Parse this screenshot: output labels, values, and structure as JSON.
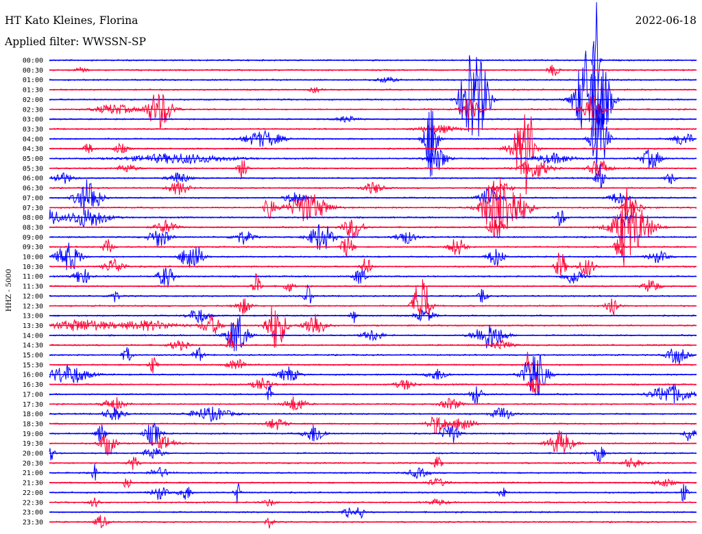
{
  "header": {
    "station": "HT Kato Kleines, Florina",
    "filter": "Applied filter: WWSSN-SP",
    "date": "2022-06-18"
  },
  "channel_label": "HHZ - 5000",
  "colors": {
    "blue": "#0000ff",
    "red": "#ff0033"
  },
  "chart_data": {
    "type": "line",
    "title": "HT Kato Kleines, Florina",
    "subtitle": "Applied filter: WWSSN-SP",
    "date": "2022-06-18",
    "ylabel": "HHZ - 5000",
    "series_colors_alternate": [
      "#0000ff",
      "#ff0033"
    ],
    "rows": [
      {
        "label": "00:00",
        "bursts": [
          [
            0.845,
            6.0,
            0.003
          ]
        ]
      },
      {
        "label": "00:30",
        "bursts": [
          [
            0.05,
            0.4,
            0.005
          ],
          [
            0.78,
            0.6,
            0.006
          ]
        ]
      },
      {
        "label": "01:00",
        "bursts": [
          [
            0.52,
            0.3,
            0.01
          ]
        ]
      },
      {
        "label": "01:30",
        "bursts": [
          [
            0.41,
            0.3,
            0.005
          ]
        ]
      },
      {
        "label": "02:00",
        "bursts": [
          [
            0.65,
            5.0,
            0.01
          ],
          [
            0.67,
            3.0,
            0.008
          ],
          [
            0.83,
            5.0,
            0.012
          ],
          [
            0.855,
            3.0,
            0.01
          ]
        ]
      },
      {
        "label": "02:30",
        "bursts": [
          [
            0.17,
            2.0,
            0.013
          ],
          [
            0.1,
            0.5,
            0.02
          ],
          [
            0.65,
            1.0,
            0.01
          ],
          [
            0.84,
            1.5,
            0.01
          ]
        ]
      },
      {
        "label": "03:00",
        "bursts": [
          [
            0.46,
            0.3,
            0.01
          ]
        ]
      },
      {
        "label": "03:30",
        "bursts": [
          [
            0.6,
            0.4,
            0.02
          ]
        ]
      },
      {
        "label": "04:00",
        "bursts": [
          [
            0.33,
            0.8,
            0.02
          ],
          [
            0.59,
            4.0,
            0.007
          ],
          [
            0.85,
            4.0,
            0.008
          ],
          [
            0.98,
            0.7,
            0.01
          ]
        ]
      },
      {
        "label": "04:30",
        "bursts": [
          [
            0.06,
            0.6,
            0.005
          ],
          [
            0.11,
            0.5,
            0.007
          ],
          [
            0.73,
            2.5,
            0.012
          ],
          [
            0.74,
            4.0,
            0.004
          ]
        ]
      },
      {
        "label": "05:00",
        "bursts": [
          [
            0.2,
            0.5,
            0.05
          ],
          [
            0.6,
            1.2,
            0.01
          ],
          [
            0.93,
            1.0,
            0.01
          ],
          [
            0.78,
            0.5,
            0.02
          ]
        ]
      },
      {
        "label": "05:30",
        "bursts": [
          [
            0.3,
            1.3,
            0.005
          ],
          [
            0.75,
            1.0,
            0.015
          ],
          [
            0.12,
            0.4,
            0.01
          ],
          [
            0.85,
            1.0,
            0.01
          ]
        ]
      },
      {
        "label": "06:00",
        "bursts": [
          [
            0.02,
            0.6,
            0.01
          ],
          [
            0.2,
            0.6,
            0.01
          ],
          [
            0.85,
            1.5,
            0.005
          ],
          [
            0.96,
            0.6,
            0.005
          ]
        ]
      },
      {
        "label": "06:30",
        "bursts": [
          [
            0.2,
            0.7,
            0.01
          ],
          [
            0.5,
            0.6,
            0.01
          ],
          [
            0.7,
            0.5,
            0.01
          ]
        ]
      },
      {
        "label": "07:00",
        "bursts": [
          [
            0.06,
            2.0,
            0.012
          ],
          [
            0.38,
            0.7,
            0.01
          ],
          [
            0.68,
            1.0,
            0.01
          ],
          [
            0.88,
            0.6,
            0.01
          ]
        ]
      },
      {
        "label": "07:30",
        "bursts": [
          [
            0.4,
            1.5,
            0.02
          ],
          [
            0.69,
            3.0,
            0.015
          ],
          [
            0.72,
            1.6,
            0.015
          ],
          [
            0.9,
            1.0,
            0.01
          ],
          [
            0.34,
            1.2,
            0.005
          ]
        ]
      },
      {
        "label": "08:00",
        "bursts": [
          [
            0.0,
            1.0,
            0.01
          ],
          [
            0.06,
            1.0,
            0.02
          ],
          [
            0.79,
            0.9,
            0.005
          ],
          [
            0.89,
            1.2,
            0.005
          ]
        ]
      },
      {
        "label": "08:30",
        "bursts": [
          [
            0.47,
            1.2,
            0.01
          ],
          [
            0.69,
            1.2,
            0.007
          ],
          [
            0.9,
            2.5,
            0.02
          ],
          [
            0.89,
            3.2,
            0.004
          ],
          [
            0.18,
            0.7,
            0.01
          ]
        ]
      },
      {
        "label": "09:00",
        "bursts": [
          [
            0.42,
            1.5,
            0.012
          ],
          [
            0.17,
            1.0,
            0.01
          ],
          [
            0.3,
            0.7,
            0.01
          ],
          [
            0.55,
            0.7,
            0.01
          ]
        ]
      },
      {
        "label": "09:30",
        "bursts": [
          [
            0.09,
            0.8,
            0.005
          ],
          [
            0.46,
            1.2,
            0.006
          ],
          [
            0.63,
            1.0,
            0.008
          ],
          [
            0.88,
            2.0,
            0.004
          ]
        ]
      },
      {
        "label": "10:00",
        "bursts": [
          [
            0.03,
            1.5,
            0.012
          ],
          [
            0.22,
            1.8,
            0.01
          ],
          [
            0.69,
            1.0,
            0.008
          ],
          [
            0.94,
            0.6,
            0.01
          ]
        ]
      },
      {
        "label": "10:30",
        "bursts": [
          [
            0.1,
            0.8,
            0.01
          ],
          [
            0.49,
            1.0,
            0.005
          ],
          [
            0.79,
            1.7,
            0.005
          ],
          [
            0.83,
            1.0,
            0.008
          ]
        ]
      },
      {
        "label": "11:00",
        "bursts": [
          [
            0.05,
            0.9,
            0.008
          ],
          [
            0.18,
            1.1,
            0.008
          ],
          [
            0.48,
            1.0,
            0.006
          ],
          [
            0.81,
            0.8,
            0.01
          ]
        ]
      },
      {
        "label": "11:30",
        "bursts": [
          [
            0.32,
            1.3,
            0.004
          ],
          [
            0.37,
            0.6,
            0.005
          ],
          [
            0.93,
            0.7,
            0.008
          ]
        ]
      },
      {
        "label": "12:00",
        "bursts": [
          [
            0.1,
            0.7,
            0.005
          ],
          [
            0.4,
            1.2,
            0.004
          ],
          [
            0.67,
            0.9,
            0.004
          ]
        ]
      },
      {
        "label": "12:30",
        "bursts": [
          [
            0.3,
            0.8,
            0.008
          ],
          [
            0.575,
            3.5,
            0.008
          ],
          [
            0.87,
            1.2,
            0.006
          ]
        ]
      },
      {
        "label": "13:00",
        "bursts": [
          [
            0.23,
            0.8,
            0.01
          ],
          [
            0.47,
            0.8,
            0.003
          ],
          [
            0.58,
            0.6,
            0.01
          ]
        ]
      },
      {
        "label": "13:30",
        "bursts": [
          [
            0.25,
            1.0,
            0.01
          ],
          [
            0.35,
            2.5,
            0.01
          ],
          [
            0.41,
            1.4,
            0.01
          ],
          [
            0.05,
            0.6,
            0.03
          ],
          [
            0.15,
            0.5,
            0.03
          ]
        ]
      },
      {
        "label": "14:00",
        "bursts": [
          [
            0.29,
            2.3,
            0.01
          ],
          [
            0.68,
            1.4,
            0.015
          ],
          [
            0.5,
            0.6,
            0.01
          ]
        ]
      },
      {
        "label": "14:30",
        "bursts": [
          [
            0.28,
            1.4,
            0.003
          ],
          [
            0.2,
            0.5,
            0.01
          ],
          [
            0.7,
            0.5,
            0.01
          ]
        ]
      },
      {
        "label": "15:00",
        "bursts": [
          [
            0.12,
            0.8,
            0.005
          ],
          [
            0.23,
            0.8,
            0.005
          ],
          [
            0.97,
            0.9,
            0.01
          ]
        ]
      },
      {
        "label": "15:30",
        "bursts": [
          [
            0.16,
            1.0,
            0.004
          ],
          [
            0.29,
            0.6,
            0.01
          ],
          [
            0.74,
            1.5,
            0.003
          ]
        ]
      },
      {
        "label": "16:00",
        "bursts": [
          [
            0.03,
            1.0,
            0.02
          ],
          [
            0.37,
            0.8,
            0.01
          ],
          [
            0.75,
            2.5,
            0.012
          ],
          [
            0.6,
            0.6,
            0.01
          ]
        ]
      },
      {
        "label": "16:30",
        "bursts": [
          [
            0.75,
            1.6,
            0.005
          ],
          [
            0.33,
            0.7,
            0.01
          ],
          [
            0.55,
            0.5,
            0.01
          ]
        ]
      },
      {
        "label": "17:00",
        "bursts": [
          [
            0.34,
            1.0,
            0.003
          ],
          [
            0.66,
            1.0,
            0.006
          ],
          [
            0.96,
            1.0,
            0.02
          ]
        ]
      },
      {
        "label": "17:30",
        "bursts": [
          [
            0.1,
            0.7,
            0.01
          ],
          [
            0.38,
            0.8,
            0.01
          ],
          [
            0.62,
            0.6,
            0.01
          ]
        ]
      },
      {
        "label": "18:00",
        "bursts": [
          [
            0.1,
            0.7,
            0.01
          ],
          [
            0.25,
            0.7,
            0.02
          ],
          [
            0.7,
            0.7,
            0.01
          ]
        ]
      },
      {
        "label": "18:30",
        "bursts": [
          [
            0.6,
            1.0,
            0.01
          ],
          [
            0.64,
            0.9,
            0.01
          ],
          [
            0.35,
            0.6,
            0.01
          ]
        ]
      },
      {
        "label": "19:00",
        "bursts": [
          [
            0.08,
            1.0,
            0.005
          ],
          [
            0.16,
            1.2,
            0.008
          ],
          [
            0.41,
            1.0,
            0.01
          ],
          [
            0.62,
            1.1,
            0.008
          ],
          [
            0.99,
            1.0,
            0.005
          ]
        ]
      },
      {
        "label": "19:30",
        "bursts": [
          [
            0.09,
            1.2,
            0.008
          ],
          [
            0.18,
            0.7,
            0.01
          ],
          [
            0.79,
            1.3,
            0.012
          ]
        ]
      },
      {
        "label": "20:00",
        "bursts": [
          [
            0.0,
            0.9,
            0.005
          ],
          [
            0.16,
            0.6,
            0.01
          ],
          [
            0.85,
            0.9,
            0.005
          ]
        ]
      },
      {
        "label": "20:30",
        "bursts": [
          [
            0.13,
            0.7,
            0.005
          ],
          [
            0.6,
            0.6,
            0.005
          ],
          [
            0.9,
            0.5,
            0.01
          ]
        ]
      },
      {
        "label": "21:00",
        "bursts": [
          [
            0.07,
            0.9,
            0.003
          ],
          [
            0.17,
            0.5,
            0.01
          ],
          [
            0.57,
            0.5,
            0.01
          ]
        ]
      },
      {
        "label": "21:30",
        "bursts": [
          [
            0.12,
            0.6,
            0.004
          ],
          [
            0.6,
            0.4,
            0.01
          ],
          [
            0.95,
            0.4,
            0.01
          ]
        ]
      },
      {
        "label": "22:00",
        "bursts": [
          [
            0.17,
            0.7,
            0.008
          ],
          [
            0.21,
            0.9,
            0.006
          ],
          [
            0.29,
            1.2,
            0.003
          ],
          [
            0.7,
            1.1,
            0.003
          ],
          [
            0.98,
            0.9,
            0.004
          ]
        ]
      },
      {
        "label": "22:30",
        "bursts": [
          [
            0.07,
            0.5,
            0.005
          ],
          [
            0.34,
            0.4,
            0.006
          ],
          [
            0.6,
            0.3,
            0.01
          ]
        ]
      },
      {
        "label": "23:00",
        "bursts": [
          [
            0.48,
            0.8,
            0.004
          ],
          [
            0.46,
            0.5,
            0.005
          ]
        ]
      },
      {
        "label": "23:30",
        "bursts": [
          [
            0.08,
            0.7,
            0.006
          ],
          [
            0.34,
            0.6,
            0.004
          ]
        ]
      }
    ]
  }
}
